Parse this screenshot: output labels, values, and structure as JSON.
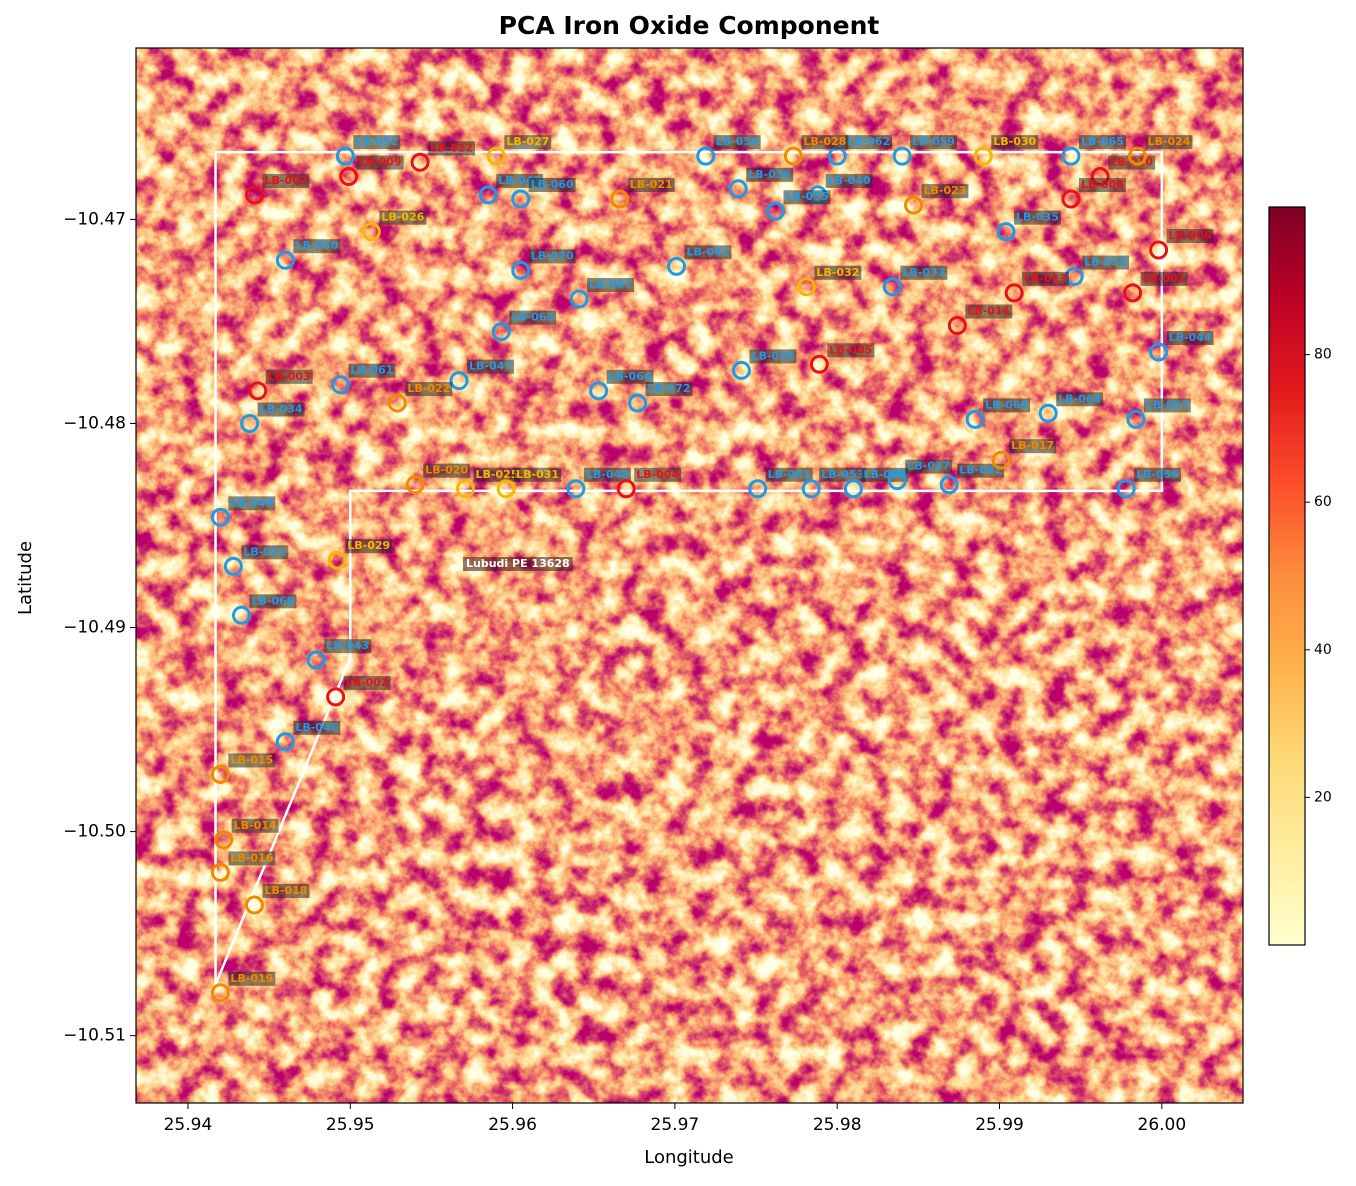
{
  "chart_data": {
    "type": "scatter",
    "title": "PCA Iron Oxide Component",
    "xlabel": "Longitude",
    "ylabel": "Latitude",
    "xlim": [
      25.9368,
      26.005
    ],
    "ylim": [
      -10.5133,
      -10.4616
    ],
    "xticks": [
      25.94,
      25.95,
      25.96,
      25.97,
      25.98,
      25.99,
      {
        "value": 26.0,
        "label": "26.00"
      }
    ],
    "yticks": [
      {
        "value": -10.47,
        "label": "−10.47"
      },
      {
        "value": -10.48,
        "label": "−10.48"
      },
      {
        "value": -10.49,
        "label": "−10.49"
      },
      {
        "value": -10.5,
        "label": "−10.50"
      },
      {
        "value": -10.51,
        "label": "−10.51"
      }
    ],
    "colormap": "YlOrRd",
    "colorbar": {
      "lim": [
        0,
        100
      ],
      "ticks": [
        20,
        40,
        60,
        80
      ]
    },
    "boundary": {
      "label": "Lubudi PE 13628",
      "color": "#ffffff",
      "x": [
        25.9417,
        26.0,
        26.0,
        25.95,
        25.95,
        25.9417
      ],
      "y": [
        -10.4667,
        -10.4667,
        -10.4833,
        -10.4833,
        -10.4915,
        -10.5075
      ]
    },
    "series": [
      {
        "color": "#1e9be8",
        "labels": [
          "LB-052",
          "LB-045",
          "LB-060",
          "LB-054",
          "LB-036",
          "LB-062",
          "LB-040",
          "LB-055",
          "LB-059",
          "LB-065",
          "LB-035",
          "LB-039",
          "LB-050",
          "LB-070",
          "LB-041",
          "LB-067",
          "LB-063",
          "LB-033",
          "LB-061",
          "LB-047",
          "LB-064",
          "LB-072",
          "LB-038",
          "LB-034",
          "LB-069",
          "LB-066",
          "LB-057",
          "LB-044",
          "LB-048",
          "LB-051",
          "LB-053",
          "LB-058",
          "LB-037",
          "LB-042",
          "LB-056",
          "LB-049",
          "LB-071",
          "LB-068",
          "LB-043",
          "LB-046"
        ],
        "x": [
          25.9497,
          25.9585,
          25.9605,
          25.9719,
          25.9739,
          25.98,
          25.9788,
          25.9762,
          25.984,
          25.9944,
          25.9904,
          25.9946,
          25.946,
          25.9605,
          25.9701,
          25.9641,
          25.9593,
          25.9834,
          25.9494,
          25.9567,
          25.9653,
          25.9677,
          25.9741,
          25.9438,
          25.9885,
          25.993,
          25.9984,
          25.9998,
          25.9639,
          25.9751,
          25.9784,
          25.981,
          25.9837,
          25.9869,
          25.9978,
          25.942,
          25.9428,
          25.9433,
          25.9479,
          25.946
        ],
        "y": [
          -10.4669,
          -10.4688,
          -10.469,
          -10.4669,
          -10.4685,
          -10.4669,
          -10.4688,
          -10.4696,
          -10.4669,
          -10.4669,
          -10.4706,
          -10.4728,
          -10.472,
          -10.4725,
          -10.4723,
          -10.4739,
          -10.4755,
          -10.4733,
          -10.4781,
          -10.4779,
          -10.4784,
          -10.479,
          -10.4774,
          -10.48,
          -10.4798,
          -10.4795,
          -10.4798,
          -10.4765,
          -10.4832,
          -10.4832,
          -10.4832,
          -10.4832,
          -10.4828,
          -10.483,
          -10.4832,
          -10.4846,
          -10.487,
          -10.4894,
          -10.4916,
          -10.4956
        ]
      },
      {
        "color": "#e8101a",
        "labels": [
          "LB-007",
          "LB-009",
          "LB-012",
          "LB-010",
          "LB-008",
          "LB-006",
          "LB-013",
          "LB-001",
          "LB-011",
          "LB-005",
          "LB-003",
          "LB-004",
          "LB-002"
        ],
        "x": [
          25.9441,
          25.9499,
          25.9543,
          25.9962,
          25.9944,
          25.9998,
          25.9909,
          25.9982,
          25.9874,
          25.9789,
          25.9443,
          25.967,
          25.9491
        ],
        "y": [
          -10.4688,
          -10.4679,
          -10.4672,
          -10.4679,
          -10.469,
          -10.4715,
          -10.4736,
          -10.4736,
          -10.4752,
          -10.4771,
          -10.4784,
          -10.4832,
          -10.4934
        ]
      },
      {
        "color": "#f08a00",
        "labels": [
          "LB-028",
          "LB-024",
          "LB-021",
          "LB-023",
          "LB-022",
          "LB-020",
          "LB-017",
          "LB-015",
          "LB-014",
          "LB-016",
          "LB-018",
          "LB-019"
        ],
        "x": [
          25.9773,
          25.9985,
          25.9666,
          25.9847,
          25.9529,
          25.954,
          25.9901,
          25.942,
          25.9422,
          25.942,
          25.9441,
          25.942
        ],
        "y": [
          -10.4669,
          -10.4669,
          -10.469,
          -10.4693,
          -10.479,
          -10.483,
          -10.4818,
          -10.4972,
          -10.5004,
          -10.502,
          -10.5036,
          -10.5079
        ]
      },
      {
        "color": "#f5b800",
        "labels": [
          "LB-027",
          "LB-030",
          "LB-026",
          "LB-032",
          "LB-025",
          "LB-031",
          "LB-029"
        ],
        "x": [
          25.959,
          25.989,
          25.9513,
          25.9781,
          25.9571,
          25.9596,
          25.9492
        ],
        "y": [
          -10.4669,
          -10.4669,
          -10.4706,
          -10.4733,
          -10.4832,
          -10.4832,
          -10.4867
        ]
      }
    ]
  }
}
